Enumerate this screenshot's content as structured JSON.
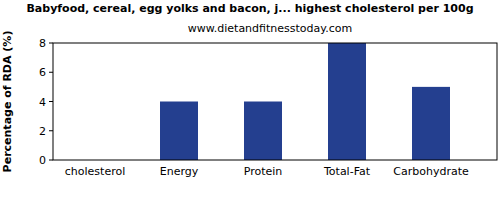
{
  "chart_data": {
    "type": "bar",
    "title": "Babyfood, cereal, egg yolks and bacon, j... highest cholesterol per 100g",
    "subtitle": "www.dietandfitnesstoday.com",
    "y_label": "Percentage of RDA (%)",
    "categories": [
      "cholesterol",
      "Energy",
      "Protein",
      "Total-Fat",
      "Carbohydrate"
    ],
    "values": [
      0,
      4,
      4,
      8,
      5
    ],
    "color": "#243f8f",
    "ylim": [
      0,
      8
    ],
    "yticks": [
      0,
      2,
      4,
      6,
      8
    ],
    "grid": false
  }
}
